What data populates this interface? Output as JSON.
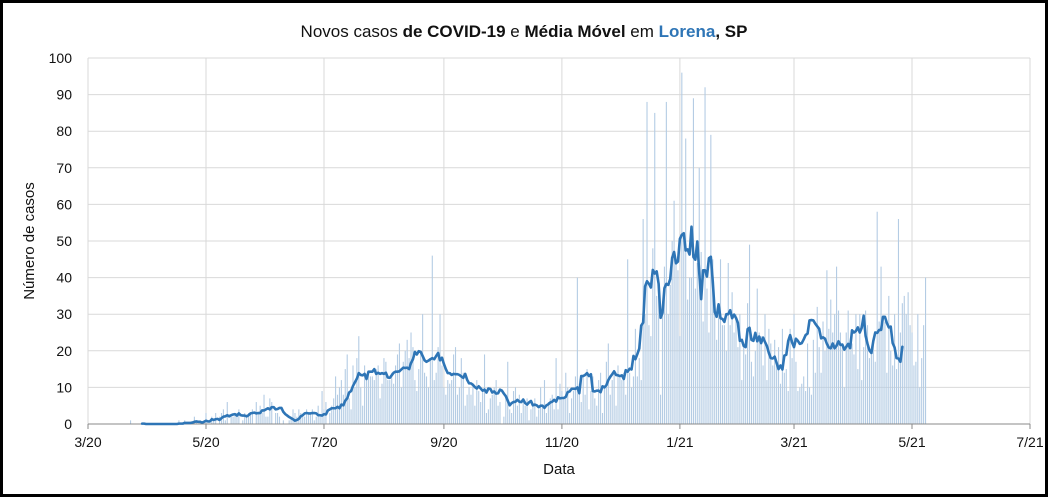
{
  "title": {
    "p1": "Novos casos ",
    "p2": "de COVID-19",
    "p3": " e ",
    "p4": "Média Móvel",
    "p5": " em ",
    "p6": "Lorena",
    "p7": ", SP"
  },
  "colors": {
    "bars": "#B4CCE4",
    "line": "#2E75B6",
    "grid": "#D9D9D9"
  },
  "chart_data": {
    "type": "bar",
    "title": "Novos casos de COVID-19 e Média Móvel em Lorena, SP",
    "xlabel": "Data",
    "ylabel": "Número de casos",
    "ylim": [
      0,
      100
    ],
    "yticks": [
      0,
      10,
      20,
      30,
      40,
      50,
      60,
      70,
      80,
      90,
      100
    ],
    "xlim": [
      "2020-03-01",
      "2021-07-01"
    ],
    "xticks": [
      {
        "date": "2020-03-01",
        "label": "3/20"
      },
      {
        "date": "2020-05-01",
        "label": "5/20"
      },
      {
        "date": "2020-07-01",
        "label": "7/20"
      },
      {
        "date": "2020-09-01",
        "label": "9/20"
      },
      {
        "date": "2020-11-01",
        "label": "11/20"
      },
      {
        "date": "2021-01-01",
        "label": "1/21"
      },
      {
        "date": "2021-03-01",
        "label": "3/21"
      },
      {
        "date": "2021-05-01",
        "label": "5/21"
      },
      {
        "date": "2021-07-01",
        "label": "7/21"
      }
    ],
    "grid": true,
    "series": [
      {
        "kind": "bar",
        "start": "2020-03-23",
        "values": [
          1,
          0,
          0,
          0,
          0,
          0,
          0,
          0,
          0,
          0,
          0,
          0,
          0,
          0,
          0,
          0,
          0,
          0,
          0,
          0,
          0,
          0,
          0,
          0,
          0,
          1,
          0,
          0,
          1,
          0,
          0,
          0,
          0,
          2,
          1,
          0,
          1,
          0,
          1,
          3,
          0,
          0,
          2,
          1,
          3,
          0,
          2,
          3,
          4,
          1,
          6,
          0,
          2,
          2,
          3,
          3,
          4,
          0,
          1,
          3,
          2,
          3,
          3,
          4,
          0,
          6,
          3,
          5,
          3,
          8,
          2,
          2,
          7,
          6,
          0,
          3,
          3,
          2,
          0,
          1,
          0,
          0,
          1,
          2,
          4,
          3,
          2,
          4,
          3,
          2,
          2,
          4,
          3,
          3,
          4,
          1,
          2,
          5,
          2,
          9,
          4,
          6,
          0,
          3,
          5,
          7,
          13,
          8,
          10,
          12,
          8,
          15,
          19,
          7,
          4,
          16,
          10,
          18,
          24,
          10,
          5,
          16,
          12,
          14,
          13,
          13,
          12,
          15,
          16,
          7,
          11,
          18,
          17,
          12,
          12,
          14,
          11,
          16,
          19,
          22,
          10,
          17,
          20,
          23,
          18,
          25,
          21,
          12,
          9,
          15,
          20,
          30,
          14,
          13,
          10,
          18,
          46,
          12,
          14,
          21,
          30,
          16,
          10,
          8,
          12,
          11,
          12,
          19,
          21,
          8,
          10,
          18,
          14,
          5,
          8,
          10,
          8,
          11,
          5,
          12,
          9,
          6,
          9,
          19,
          3,
          4,
          7,
          8,
          10,
          12,
          5,
          6,
          0,
          2,
          8,
          17,
          4,
          3,
          9,
          10,
          5,
          8,
          3,
          7,
          5,
          7,
          1,
          4,
          5,
          7,
          2,
          4,
          10,
          5,
          12,
          3,
          6,
          7,
          8,
          4,
          18,
          4,
          11,
          9,
          7,
          14,
          10,
          3,
          7,
          9,
          13,
          40,
          11,
          6,
          13,
          8,
          15,
          4,
          9,
          13,
          7,
          5,
          12,
          14,
          3,
          10,
          17,
          22,
          8,
          12,
          14,
          5,
          16,
          13,
          12,
          14,
          8,
          45,
          14,
          10,
          13,
          26,
          13,
          18,
          12,
          56,
          30,
          88,
          27,
          24,
          48,
          85,
          35,
          40,
          8,
          30,
          43,
          88,
          30,
          38,
          50,
          61,
          45,
          42,
          24,
          96,
          50,
          78,
          34,
          40,
          40,
          89,
          37,
          44,
          70,
          47,
          28,
          92,
          37,
          25,
          79,
          45,
          30,
          23,
          33,
          45,
          27,
          27,
          20,
          44,
          27,
          36,
          25,
          30,
          21,
          30,
          12,
          21,
          19,
          33,
          49,
          17,
          13,
          20,
          37,
          25,
          24,
          16,
          30,
          12,
          26,
          22,
          16,
          23,
          16,
          21,
          11,
          26,
          14,
          15,
          9,
          26,
          18,
          30,
          17,
          9,
          10,
          11,
          13,
          9,
          22,
          10,
          8,
          23,
          14,
          32,
          21,
          14,
          28,
          20,
          42,
          26,
          34,
          25,
          30,
          43,
          31,
          25,
          22,
          10,
          25,
          31,
          20,
          22,
          19,
          30,
          15,
          30,
          12,
          21,
          31,
          27,
          18,
          19,
          22,
          17,
          58,
          28,
          43,
          29,
          28,
          14,
          35,
          20,
          16,
          30,
          15,
          56,
          25,
          33,
          35,
          30,
          36,
          27,
          25,
          16,
          17,
          30,
          10,
          18,
          27,
          40
        ]
      },
      {
        "kind": "line",
        "start": "2020-03-29",
        "values": [
          0.1,
          0.1,
          0.0,
          0.0,
          0.0,
          0.0,
          0.0,
          0.0,
          0.0,
          0.0,
          0.0,
          0.0,
          0.0,
          0.0,
          0.0,
          0.0,
          0.0,
          0.0,
          0.0,
          0.1,
          0.1,
          0.1,
          0.3,
          0.3,
          0.3,
          0.3,
          0.4,
          0.6,
          0.7,
          0.6,
          0.6,
          0.4,
          0.6,
          0.9,
          0.7,
          0.7,
          1.3,
          1.1,
          1.3,
          1.4,
          1.1,
          1.6,
          2.0,
          2.1,
          2.4,
          2.1,
          2.4,
          2.6,
          2.7,
          2.3,
          2.9,
          2.4,
          2.3,
          2.3,
          2.1,
          2.4,
          2.9,
          3.0,
          3.1,
          2.9,
          3.0,
          3.0,
          3.7,
          3.7,
          4.0,
          4.3,
          4.0,
          4.6,
          4.6,
          4.0,
          4.1,
          4.4,
          4.4,
          3.3,
          2.7,
          2.3,
          1.9,
          1.6,
          1.3,
          0.9,
          1.1,
          1.4,
          2.1,
          2.4,
          2.9,
          3.0,
          2.9,
          2.9,
          3.0,
          3.0,
          2.9,
          2.4,
          2.4,
          2.3,
          2.7,
          2.6,
          3.7,
          4.0,
          4.3,
          4.3,
          4.3,
          4.7,
          4.3,
          5.3,
          5.1,
          6.4,
          7.0,
          8.6,
          9.0,
          10.4,
          11.4,
          12.4,
          13.9,
          13.4,
          13.3,
          13.7,
          12.3,
          14.3,
          14.3,
          14.3,
          15.0,
          13.7,
          14.0,
          13.7,
          13.9,
          13.7,
          14.0,
          12.7,
          12.6,
          13.3,
          14.0,
          14.3,
          14.3,
          14.4,
          14.9,
          15.4,
          15.3,
          15.4,
          15.0,
          16.7,
          17.7,
          19.7,
          19.0,
          19.9,
          19.7,
          18.6,
          17.4,
          17.0,
          17.3,
          17.7,
          18.0,
          17.7,
          18.6,
          19.4,
          17.4,
          18.1,
          16.4,
          15.0,
          13.9,
          13.9,
          13.4,
          13.7,
          13.6,
          13.6,
          13.4,
          13.0,
          12.6,
          13.7,
          12.1,
          11.1,
          11.1,
          10.7,
          10.1,
          9.7,
          10.3,
          9.7,
          9.1,
          9.4,
          8.6,
          9.7,
          9.6,
          8.6,
          8.9,
          8.3,
          8.4,
          9.4,
          9.1,
          8.3,
          7.6,
          6.4,
          5.1,
          5.7,
          6.0,
          6.1,
          6.6,
          6.1,
          6.0,
          6.7,
          5.7,
          5.3,
          5.9,
          6.3,
          5.1,
          5.3,
          5.1,
          4.6,
          5.0,
          5.0,
          4.4,
          5.1,
          5.4,
          5.9,
          6.1,
          6.6,
          6.1,
          7.3,
          7.0,
          7.1,
          7.1,
          7.4,
          8.7,
          8.9,
          9.6,
          9.6,
          9.6,
          10.0,
          8.4,
          13.1,
          13.1,
          13.4,
          13.9,
          13.1,
          13.6,
          9.0,
          8.9,
          9.1,
          9.1,
          8.7,
          10.3,
          10.0,
          10.6,
          12.0,
          12.9,
          13.6,
          14.4,
          13.4,
          13.3,
          13.1,
          13.3,
          12.3,
          14.7,
          14.3,
          15.1,
          14.9,
          18.6,
          17.7,
          19.1,
          20.6,
          26.9,
          27.7,
          37.6,
          39.0,
          38.3,
          37.3,
          42.1,
          41.1,
          41.7,
          38.3,
          29.0,
          30.4,
          37.1,
          38.3,
          38.0,
          39.6,
          45.4,
          47.0,
          43.9,
          44.4,
          50.6,
          51.7,
          52.1,
          47.4,
          47.7,
          46.3,
          53.9,
          45.6,
          44.9,
          49.9,
          41.3,
          34.1,
          42.0,
          42.0,
          40.3,
          45.3,
          45.7,
          38.9,
          30.6,
          29.3,
          32.7,
          28.9,
          28.7,
          27.9,
          30.0,
          30.0,
          31.1,
          28.9,
          29.9,
          29.0,
          27.6,
          22.7,
          23.0,
          21.3,
          21.0,
          25.9,
          26.3,
          23.0,
          22.7,
          24.9,
          22.6,
          23.9,
          22.1,
          23.6,
          22.4,
          21.3,
          19.4,
          18.0,
          17.9,
          18.4,
          16.7,
          15.0,
          16.0,
          14.9,
          18.7,
          18.9,
          22.7,
          24.3,
          22.3,
          21.0,
          23.3,
          22.7,
          21.9,
          22.1,
          23.1,
          24.3,
          24.7,
          28.3,
          28.4,
          28.3,
          27.4,
          26.7,
          26.0,
          23.4,
          23.7,
          23.3,
          21.9,
          20.9,
          20.7,
          22.0,
          20.7,
          21.4,
          22.6,
          21.6,
          21.7,
          20.3,
          21.1,
          21.9,
          20.7,
          25.6,
          25.0,
          25.4,
          26.4,
          25.0,
          26.3,
          29.6,
          24.1,
          21.9,
          20.1,
          19.4,
          22.7,
          25.0,
          24.9,
          25.7,
          25.7,
          29.3,
          29.3,
          27.6,
          26.4,
          26.6,
          22.1,
          20.9,
          18.0,
          17.9,
          17.0,
          21.1
        ]
      }
    ]
  }
}
